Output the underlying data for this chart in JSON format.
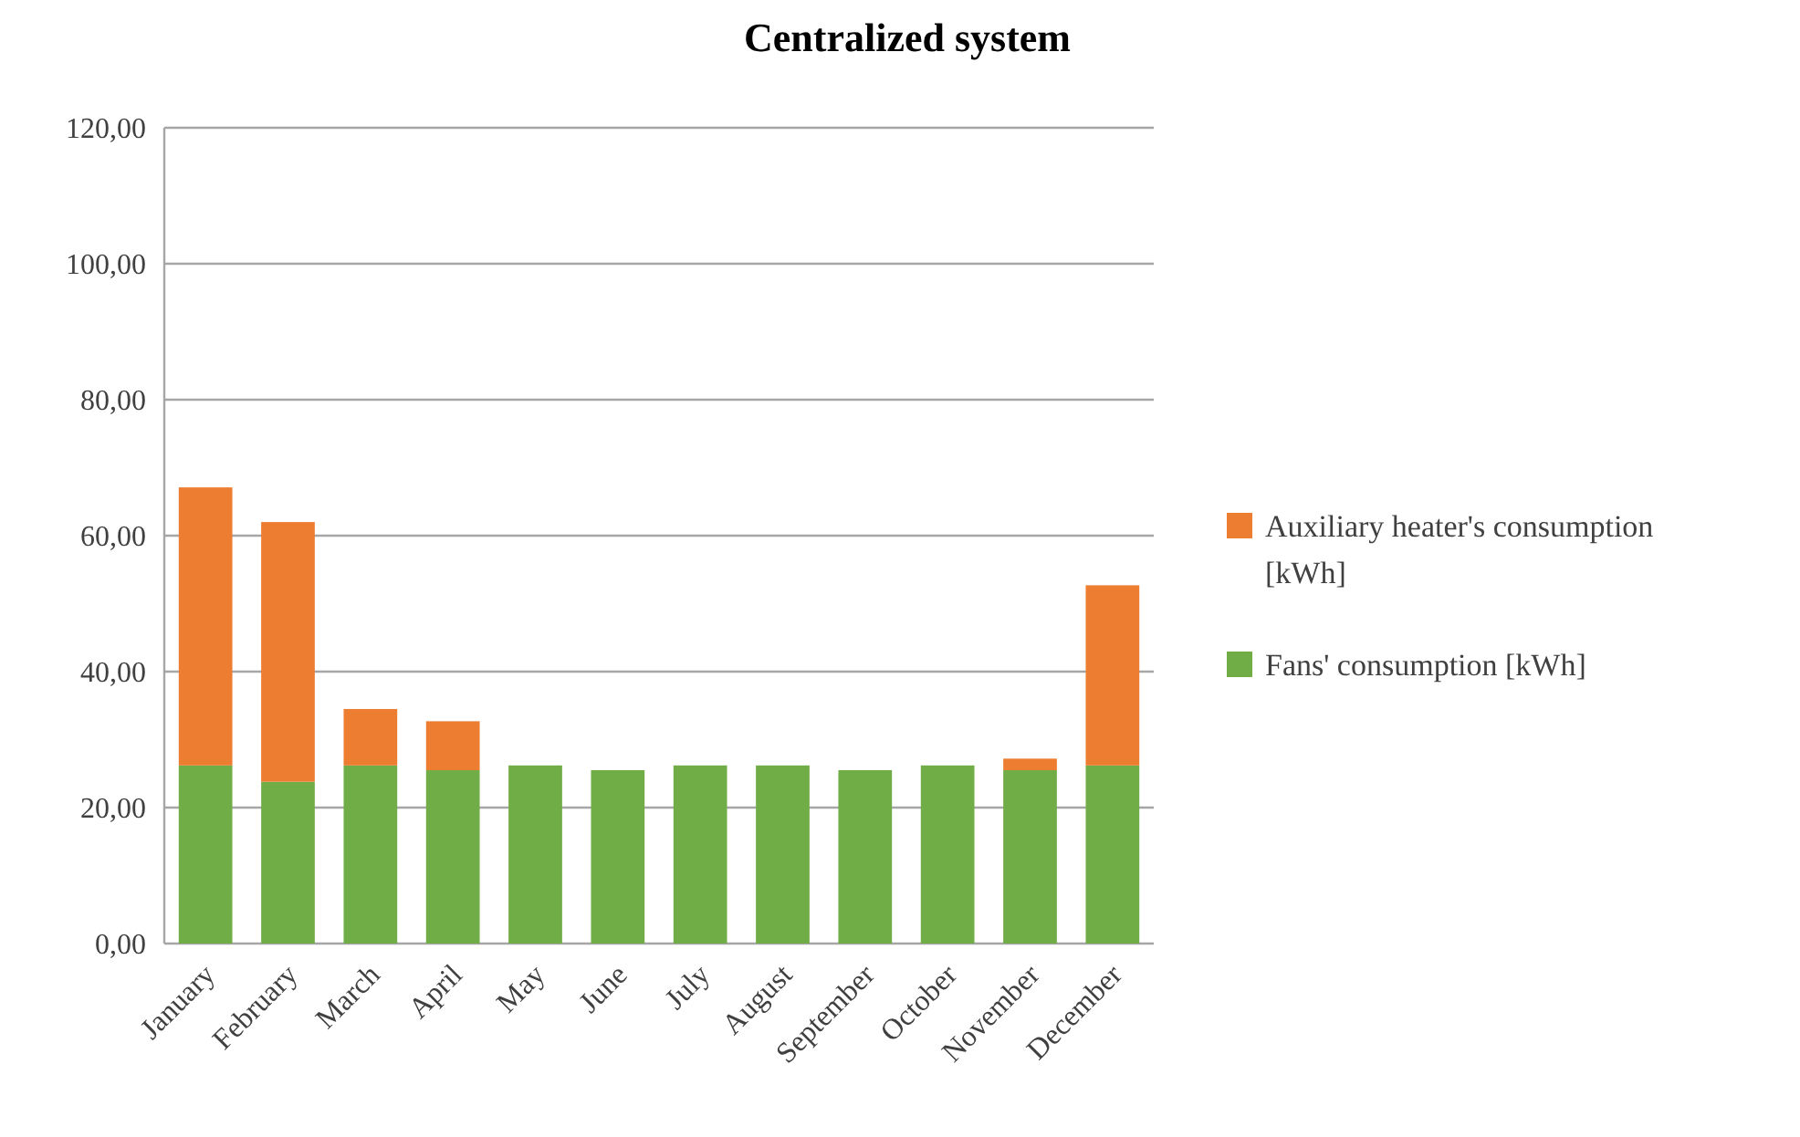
{
  "chart_data": {
    "type": "bar",
    "title": "Centralized system",
    "stacked": true,
    "legend": "right",
    "grid": "y",
    "categories": [
      "January",
      "February",
      "March",
      "April",
      "May",
      "June",
      "July",
      "August",
      "September",
      "October",
      "November",
      "December"
    ],
    "series": [
      {
        "name": "Fans' consumption [kWh]",
        "color": "#70ad47",
        "values": [
          26.2,
          23.8,
          26.2,
          25.5,
          26.2,
          25.5,
          26.2,
          26.2,
          25.5,
          26.2,
          25.5,
          26.2
        ]
      },
      {
        "name": "Auxiliary heater's consumption [kWh]",
        "color": "#ed7d31",
        "values": [
          40.9,
          38.2,
          8.3,
          7.2,
          0,
          0,
          0,
          0,
          0,
          0,
          1.7,
          26.5
        ]
      }
    ],
    "ylim": [
      0,
      120
    ],
    "yticks": [
      {
        "value": 0,
        "label": "0,00"
      },
      {
        "value": 20,
        "label": "20,00"
      },
      {
        "value": 40,
        "label": "40,00"
      },
      {
        "value": 60,
        "label": "60,00"
      },
      {
        "value": 80,
        "label": "80,00"
      },
      {
        "value": 100,
        "label": "100,00"
      },
      {
        "value": 120,
        "label": "120,00"
      }
    ]
  }
}
